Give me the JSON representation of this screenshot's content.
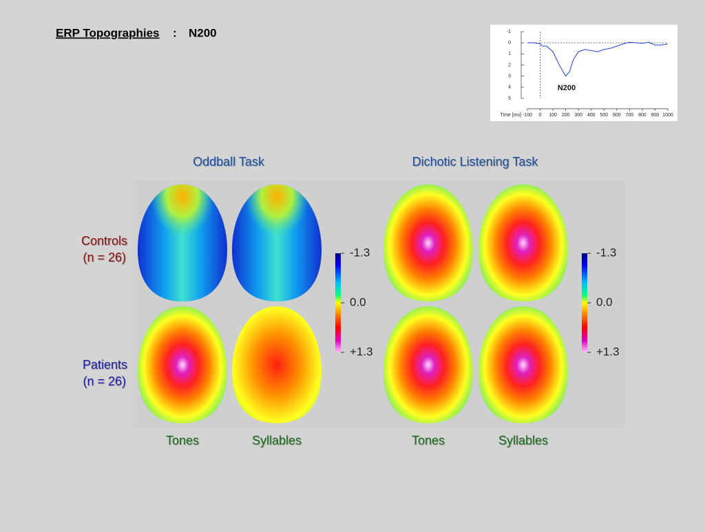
{
  "header": {
    "title": "ERP Topographies",
    "separator": ":",
    "component": "N200"
  },
  "chart_data": {
    "type": "line",
    "xlabel": "Time [ms]",
    "annotation": "N200",
    "x": [
      -100,
      -50,
      0,
      20,
      50,
      100,
      150,
      200,
      230,
      260,
      300,
      350,
      400,
      450,
      500,
      550,
      600,
      650,
      700,
      750,
      800,
      850,
      900,
      950,
      1000
    ],
    "values": [
      0,
      0,
      0.1,
      0.3,
      0.3,
      0.8,
      2,
      3,
      2.6,
      1.5,
      0.8,
      0.6,
      0.7,
      0.8,
      0.6,
      0.5,
      0.3,
      0.1,
      -0.05,
      0,
      0.05,
      -0.05,
      0.2,
      0.2,
      0.1
    ],
    "color": "#2040e0",
    "ylim": [
      -1,
      5
    ],
    "yticks": [
      -1,
      0,
      1,
      2,
      3,
      4,
      5
    ],
    "xlim": [
      -100,
      1000
    ],
    "xticks": [
      -100,
      0,
      100,
      200,
      300,
      400,
      500,
      600,
      700,
      800,
      900,
      1000
    ]
  },
  "tasks": [
    {
      "title": "Oddball Task",
      "conditions": [
        "Tones",
        "Syllables"
      ]
    },
    {
      "title": "Dichotic Listening Task",
      "conditions": [
        "Tones",
        "Syllables"
      ]
    }
  ],
  "groups": [
    {
      "label": "Controls",
      "n": "(n = 26)"
    },
    {
      "label": "Patients",
      "n": "(n = 26)"
    }
  ],
  "colorbar": {
    "ticks": [
      -1.3,
      {
        "value": 0,
        "label": "0.0"
      },
      {
        "value": 1.3,
        "label": "+1.3"
      }
    ]
  }
}
